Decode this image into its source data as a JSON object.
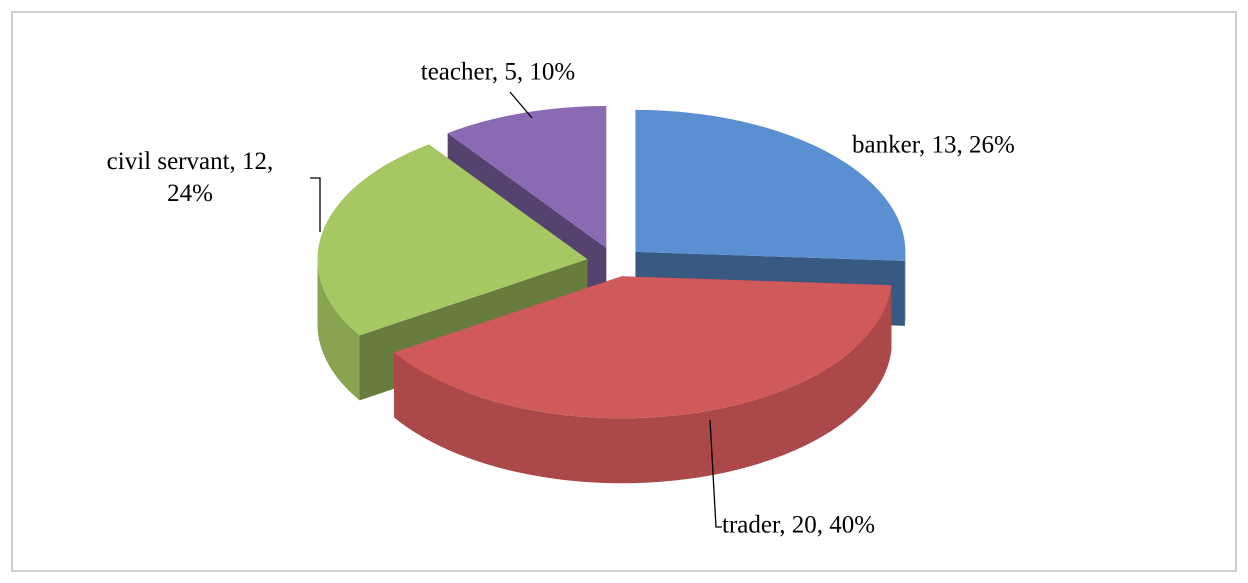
{
  "chart_data": {
    "type": "pie3d",
    "values": [
      13,
      20,
      12,
      5
    ],
    "value_labels": [
      "banker, 13, 26%",
      "trader, 20, 40%",
      "civil servant, 12, 24%",
      "teacher, 5, 10%"
    ],
    "colors": [
      "#5a8fd2",
      "#d0595a",
      "#a6c862",
      "#8a6bb3"
    ]
  }
}
